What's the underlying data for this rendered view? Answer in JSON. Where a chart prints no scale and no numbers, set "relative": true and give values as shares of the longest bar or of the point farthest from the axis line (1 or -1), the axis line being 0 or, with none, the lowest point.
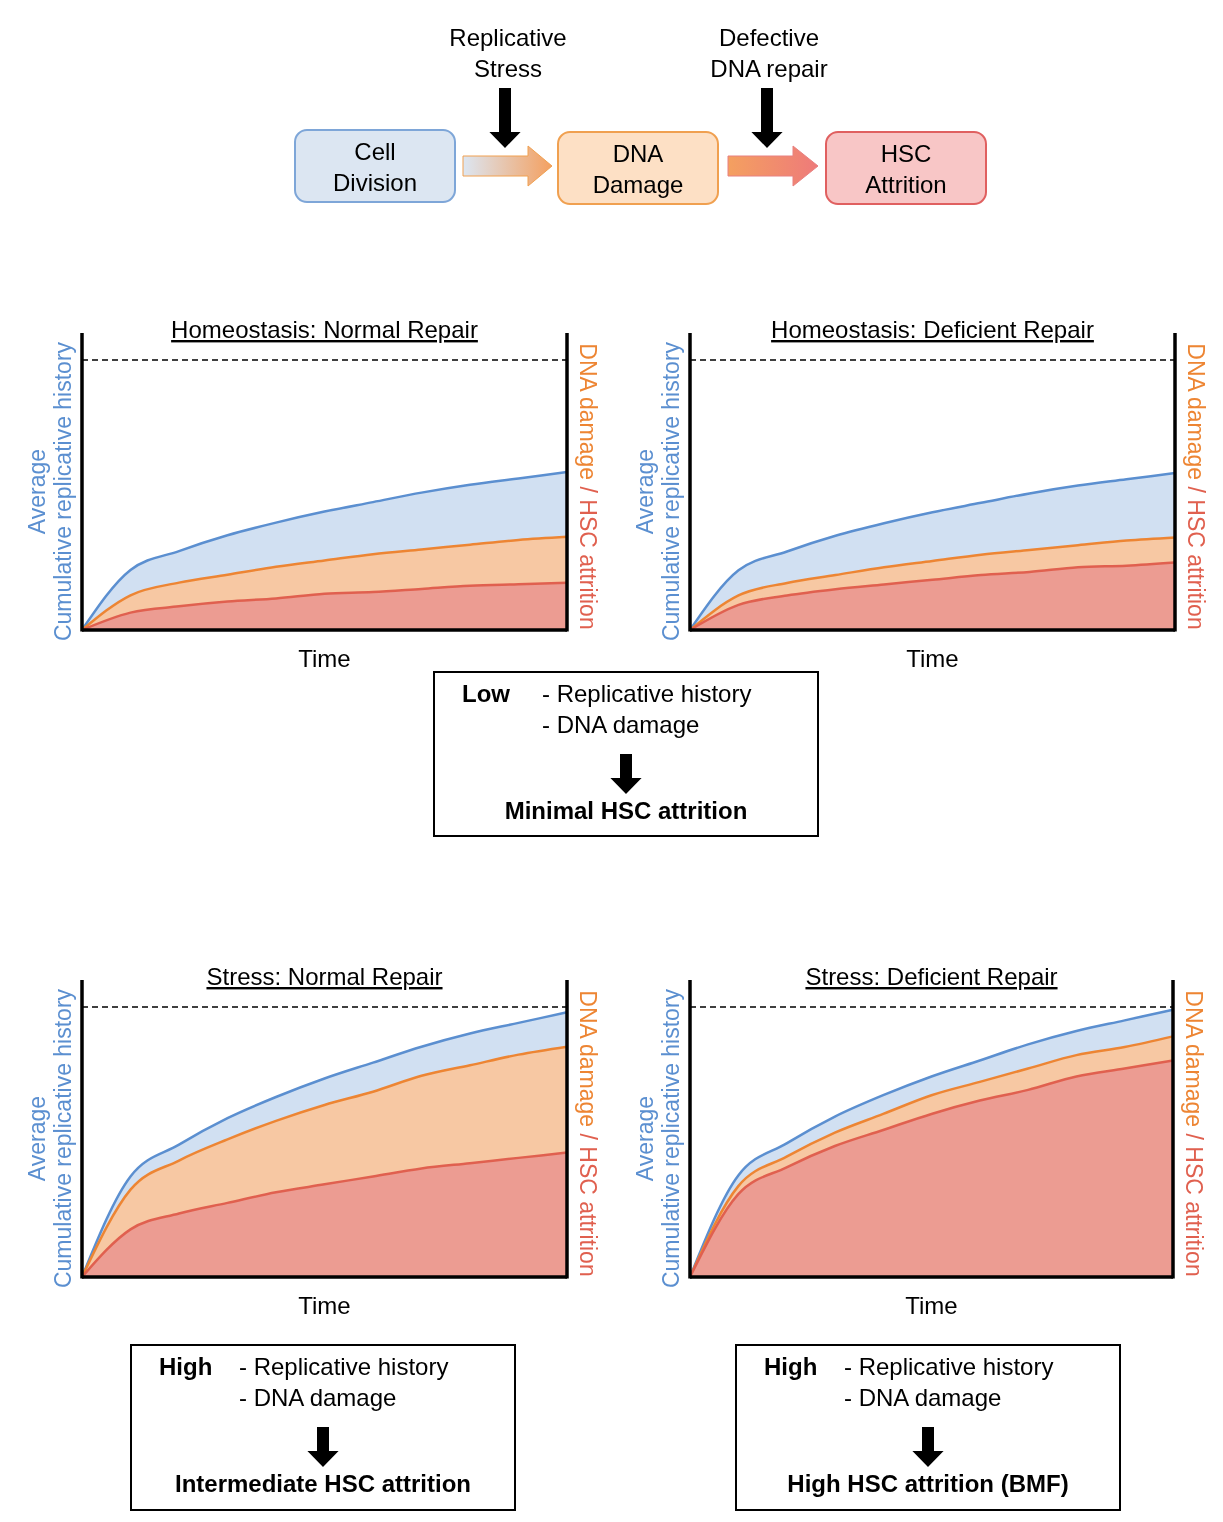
{
  "chart_data": [
    {
      "type": "other",
      "annotations": [
        "Cell\nDivision",
        "DNA\nDamage",
        "HSC\nAttrition",
        "Replicative\nStress",
        "Defective\nDNA repair"
      ]
    },
    {
      "type": "area",
      "relative": true,
      "title": "Homeostasis: Normal Repair",
      "xlabel": "Time",
      "ylabel": "Average\nCumulative replicative history",
      "y2label": "DNA damage / HSC attrition",
      "categories": [
        null,
        null,
        null,
        null,
        null,
        null,
        null,
        null,
        null,
        null,
        null
      ],
      "series": [
        {
          "color": "#5b8fd0",
          "values": [
            0,
            0.38,
            0.5,
            0.6,
            0.68,
            0.75,
            0.81,
            0.87,
            0.92,
            0.96,
            1
          ]
        },
        {
          "color": "#ed8533",
          "values": [
            0,
            0.22,
            0.3,
            0.35,
            0.4,
            0.44,
            0.48,
            0.51,
            0.54,
            0.57,
            0.59
          ]
        },
        {
          "color": "#e0604f",
          "values": [
            0,
            0.11,
            0.15,
            0.18,
            0.2,
            0.23,
            0.24,
            0.26,
            0.28,
            0.29,
            0.3
          ]
        }
      ],
      "ref_lines": [
        {
          "axis": "y",
          "value": 1.71,
          "color": "#000000",
          "line_style": "dashed"
        }
      ]
    },
    {
      "type": "area",
      "relative": true,
      "title": "Homeostasis: Deficient Repair",
      "xlabel": "Time",
      "ylabel": "Average\nCumulative replicative history",
      "y2label": "DNA damage / HSC attrition",
      "categories": [
        null,
        null,
        null,
        null,
        null,
        null,
        null,
        null,
        null,
        null,
        null
      ],
      "series": [
        {
          "color": "#5b8fd0",
          "values": [
            0,
            0.38,
            0.5,
            0.6,
            0.68,
            0.75,
            0.81,
            0.87,
            0.92,
            0.96,
            1
          ]
        },
        {
          "color": "#ed8533",
          "values": [
            0,
            0.22,
            0.3,
            0.35,
            0.4,
            0.44,
            0.48,
            0.51,
            0.54,
            0.57,
            0.59
          ]
        },
        {
          "color": "#e0604f",
          "values": [
            0,
            0.16,
            0.22,
            0.26,
            0.29,
            0.32,
            0.35,
            0.37,
            0.4,
            0.41,
            0.43
          ]
        }
      ],
      "ref_lines": [
        {
          "axis": "y",
          "value": 1.72,
          "color": "#000000",
          "line_style": "dashed"
        }
      ]
    },
    {
      "type": "other",
      "annotations": [
        "Low",
        "- Replicative history",
        "- DNA damage",
        "Minimal HSC attrition"
      ]
    },
    {
      "type": "area",
      "relative": true,
      "title": "Stress: Normal Repair",
      "xlabel": "Time",
      "ylabel": "Average\nCumulative replicative history",
      "y2label": "DNA damage / HSC attrition",
      "categories": [
        null,
        null,
        null,
        null,
        null,
        null,
        null,
        null,
        null,
        null,
        null
      ],
      "series": [
        {
          "color": "#5b8fd0",
          "values": [
            0,
            0.38,
            0.5,
            0.6,
            0.68,
            0.75,
            0.81,
            0.87,
            0.92,
            0.96,
            1
          ]
        },
        {
          "color": "#ed8533",
          "values": [
            0,
            0.33,
            0.44,
            0.52,
            0.59,
            0.65,
            0.7,
            0.76,
            0.8,
            0.84,
            0.87
          ]
        },
        {
          "color": "#e0604f",
          "values": [
            0,
            0.18,
            0.24,
            0.28,
            0.32,
            0.35,
            0.38,
            0.41,
            0.43,
            0.45,
            0.47
          ]
        }
      ],
      "ref_lines": [
        {
          "axis": "y",
          "value": 1.02,
          "color": "#000000",
          "line_style": "dashed"
        }
      ]
    },
    {
      "type": "area",
      "relative": true,
      "title": "Stress: Deficient Repair",
      "xlabel": "Time",
      "ylabel": "Average\nCumulative replicative history",
      "y2label": "DNA damage / HSC attrition",
      "categories": [
        null,
        null,
        null,
        null,
        null,
        null,
        null,
        null,
        null,
        null,
        null
      ],
      "series": [
        {
          "color": "#5b8fd0",
          "values": [
            0,
            0.38,
            0.5,
            0.6,
            0.68,
            0.75,
            0.81,
            0.87,
            0.92,
            0.96,
            1
          ]
        },
        {
          "color": "#ed8533",
          "values": [
            0,
            0.34,
            0.45,
            0.54,
            0.61,
            0.68,
            0.73,
            0.78,
            0.83,
            0.86,
            0.9
          ]
        },
        {
          "color": "#e0604f",
          "values": [
            0,
            0.31,
            0.41,
            0.49,
            0.55,
            0.61,
            0.66,
            0.7,
            0.75,
            0.78,
            0.81
          ]
        }
      ],
      "ref_lines": [
        {
          "axis": "y",
          "value": 1.01,
          "color": "#000000",
          "line_style": "dashed"
        }
      ]
    },
    {
      "type": "other",
      "annotations": [
        "High",
        "- Replicative history",
        "- DNA damage",
        "Intermediate HSC attrition"
      ]
    },
    {
      "type": "other",
      "annotations": [
        "High",
        "- Replicative history",
        "- DNA damage",
        "High HSC attrition (BMF)"
      ]
    }
  ]
}
